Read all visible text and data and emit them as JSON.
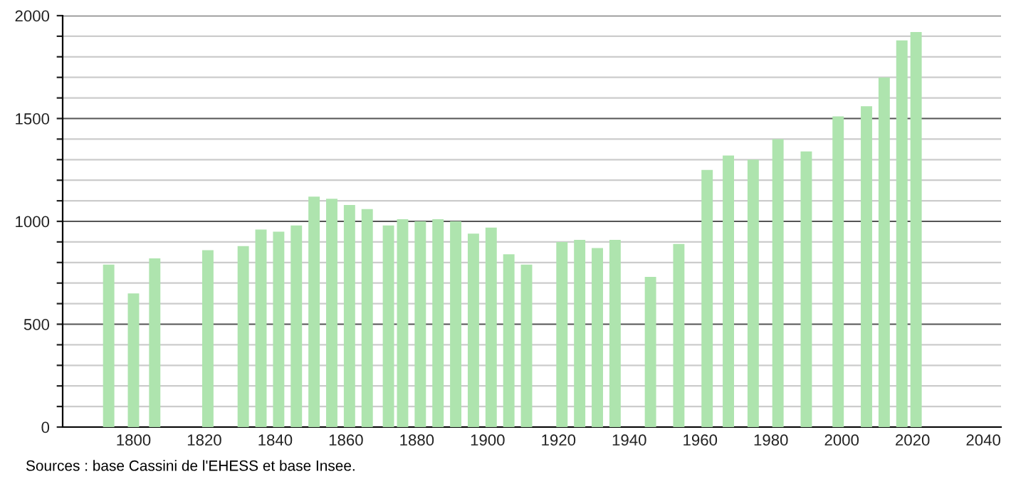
{
  "chart_data": {
    "type": "bar",
    "x": [
      1793,
      1800,
      1806,
      1821,
      1831,
      1836,
      1841,
      1846,
      1851,
      1856,
      1861,
      1866,
      1872,
      1876,
      1881,
      1886,
      1891,
      1896,
      1901,
      1906,
      1911,
      1921,
      1926,
      1931,
      1936,
      1946,
      1954,
      1962,
      1968,
      1975,
      1982,
      1990,
      1999,
      2007,
      2012,
      2017,
      2021
    ],
    "values": [
      790,
      650,
      820,
      860,
      880,
      960,
      950,
      980,
      1120,
      1110,
      1080,
      1060,
      980,
      1010,
      1000,
      1010,
      1000,
      940,
      970,
      840,
      790,
      900,
      910,
      870,
      910,
      730,
      890,
      1250,
      1320,
      1300,
      1400,
      1340,
      1510,
      1560,
      1700,
      1880,
      1920
    ],
    "color": "#aee4ae",
    "xlim": [
      1780,
      2045
    ],
    "xticks": [
      1800,
      1820,
      1840,
      1860,
      1880,
      1900,
      1920,
      1940,
      1960,
      1980,
      2000,
      2020,
      2040
    ],
    "ylim": [
      0,
      2000
    ],
    "yticks": [
      0,
      {
        "value": 100,
        "label": null
      },
      {
        "value": 200,
        "label": null
      },
      {
        "value": 300,
        "label": null
      },
      {
        "value": 400,
        "label": null
      },
      500,
      {
        "value": 600,
        "label": null
      },
      {
        "value": 700,
        "label": null
      },
      {
        "value": 800,
        "label": null
      },
      {
        "value": 900,
        "label": null
      },
      1000,
      {
        "value": 1100,
        "label": null
      },
      {
        "value": 1200,
        "label": null
      },
      {
        "value": 1300,
        "label": null
      },
      {
        "value": 1400,
        "label": null
      },
      1500,
      {
        "value": 1600,
        "label": null
      },
      {
        "value": 1700,
        "label": null
      },
      {
        "value": 1800,
        "label": null
      },
      {
        "value": 1900,
        "label": null
      },
      2000
    ],
    "grid": "y",
    "annotations": [
      "Sources : base Cassini de l'EHESS et base Insee."
    ]
  }
}
